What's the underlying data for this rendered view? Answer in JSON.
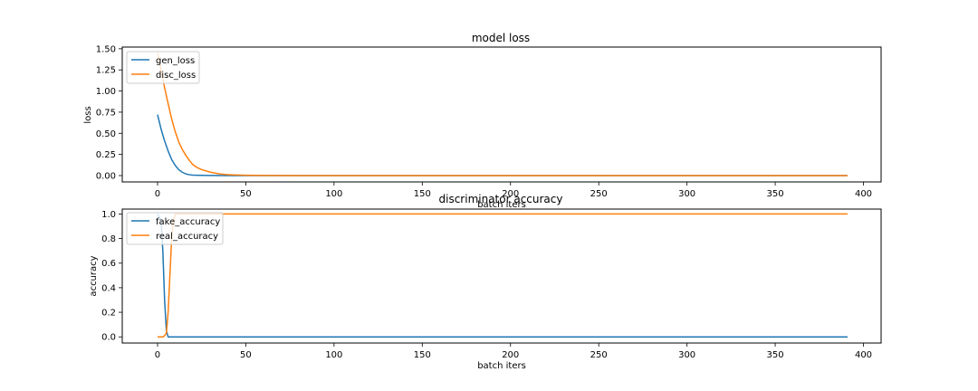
{
  "chart_data": [
    {
      "type": "line",
      "title": "model loss",
      "xlabel": "batch iters",
      "ylabel": "loss",
      "xlim": [
        -20,
        410
      ],
      "ylim": [
        -0.075,
        1.52
      ],
      "x_ticks": [
        0,
        50,
        100,
        150,
        200,
        250,
        300,
        350,
        400
      ],
      "y_ticks": [
        0,
        0.25,
        0.5,
        0.75,
        1.0,
        1.25,
        1.5
      ],
      "y_tick_labels": [
        "0.00",
        "0.25",
        "0.50",
        "0.75",
        "1.00",
        "1.25",
        "1.50"
      ],
      "grid": false,
      "legend_position": "upper-left",
      "series": [
        {
          "name": "gen_loss",
          "color": "#1f77b4",
          "points": [
            [
              0,
              0.72
            ],
            [
              2,
              0.55
            ],
            [
              4,
              0.41
            ],
            [
              6,
              0.29
            ],
            [
              8,
              0.19
            ],
            [
              10,
              0.12
            ],
            [
              12,
              0.07
            ],
            [
              14,
              0.04
            ],
            [
              16,
              0.02
            ],
            [
              18,
              0.01
            ],
            [
              20,
              0.005
            ],
            [
              25,
              0.002
            ],
            [
              30,
              0.001
            ],
            [
              40,
              0.0
            ],
            [
              60,
              0.0
            ],
            [
              391,
              0.0
            ]
          ]
        },
        {
          "name": "disc_loss",
          "color": "#ff7f0e",
          "points": [
            [
              0,
              1.45
            ],
            [
              2,
              1.25
            ],
            [
              4,
              1.04
            ],
            [
              6,
              0.85
            ],
            [
              8,
              0.67
            ],
            [
              10,
              0.52
            ],
            [
              12,
              0.4
            ],
            [
              14,
              0.31
            ],
            [
              16,
              0.24
            ],
            [
              18,
              0.18
            ],
            [
              20,
              0.13
            ],
            [
              22,
              0.1
            ],
            [
              25,
              0.07
            ],
            [
              30,
              0.04
            ],
            [
              35,
              0.02
            ],
            [
              40,
              0.01
            ],
            [
              50,
              0.004
            ],
            [
              60,
              0.001
            ],
            [
              80,
              0.0
            ],
            [
              391,
              0.0
            ]
          ]
        }
      ]
    },
    {
      "type": "line",
      "title": "discriminator accuracy",
      "xlabel": "batch iters",
      "ylabel": "accuracy",
      "xlim": [
        -20,
        410
      ],
      "ylim": [
        -0.05,
        1.04
      ],
      "x_ticks": [
        0,
        50,
        100,
        150,
        200,
        250,
        300,
        350,
        400
      ],
      "y_ticks": [
        0,
        0.2,
        0.4,
        0.6,
        0.8,
        1.0
      ],
      "y_tick_labels": [
        "0.0",
        "0.2",
        "0.4",
        "0.6",
        "0.8",
        "1.0"
      ],
      "grid": false,
      "legend_position": "upper-left",
      "series": [
        {
          "name": "fake_accuracy",
          "color": "#1f77b4",
          "points": [
            [
              0,
              1.0
            ],
            [
              2,
              0.95
            ],
            [
              3,
              0.7
            ],
            [
              4,
              0.3
            ],
            [
              5,
              0.05
            ],
            [
              6,
              0.0
            ],
            [
              391,
              0.0
            ]
          ]
        },
        {
          "name": "real_accuracy",
          "color": "#ff7f0e",
          "points": [
            [
              0,
              0.0
            ],
            [
              3,
              0.0
            ],
            [
              4,
              0.01
            ],
            [
              5,
              0.03
            ],
            [
              6,
              0.2
            ],
            [
              7,
              0.5
            ],
            [
              8,
              0.8
            ],
            [
              9,
              0.95
            ],
            [
              10,
              1.0
            ],
            [
              391,
              1.0
            ]
          ]
        }
      ]
    }
  ]
}
